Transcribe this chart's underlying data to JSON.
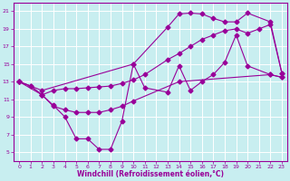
{
  "xlabel": "Windchill (Refroidissement éolien,°C)",
  "bg_color": "#c8eef0",
  "line_color": "#990099",
  "grid_color": "#ffffff",
  "xlim": [
    -0.5,
    23.5
  ],
  "ylim": [
    4,
    22
  ],
  "xticks": [
    0,
    1,
    2,
    3,
    4,
    5,
    6,
    7,
    8,
    9,
    10,
    11,
    12,
    13,
    14,
    15,
    16,
    17,
    18,
    19,
    20,
    21,
    22,
    23
  ],
  "yticks": [
    5,
    7,
    9,
    11,
    13,
    15,
    17,
    19,
    21
  ],
  "line1_x": [
    0,
    1,
    2,
    3,
    4,
    5,
    6,
    7,
    8,
    9,
    10,
    14,
    22,
    23
  ],
  "line1_y": [
    13,
    12.5,
    11.5,
    10.2,
    9.8,
    9.5,
    9.5,
    9.5,
    9.8,
    10.2,
    10.8,
    13.0,
    13.8,
    13.5
  ],
  "line2_x": [
    0,
    2,
    3,
    4,
    5,
    6,
    7,
    8,
    9,
    10,
    11,
    13,
    14,
    15,
    16,
    17,
    18,
    19,
    20,
    21,
    22,
    23
  ],
  "line2_y": [
    13,
    11.5,
    12.0,
    12.2,
    12.2,
    12.3,
    12.4,
    12.5,
    12.8,
    13.2,
    13.8,
    15.5,
    16.2,
    17.0,
    17.8,
    18.3,
    18.8,
    19.0,
    18.5,
    19.0,
    19.5,
    14.0
  ],
  "line3_x": [
    0,
    1,
    2,
    3,
    4,
    5,
    6,
    7,
    8,
    9,
    10,
    11,
    13,
    14,
    15,
    16,
    17,
    18,
    19,
    20,
    22,
    23
  ],
  "line3_y": [
    13,
    12.5,
    11.5,
    10.3,
    9.0,
    6.5,
    6.5,
    5.3,
    5.3,
    8.5,
    15.0,
    12.3,
    11.8,
    14.8,
    12.0,
    13.0,
    13.8,
    15.2,
    18.3,
    14.8,
    13.8,
    13.5
  ],
  "line4_x": [
    0,
    2,
    10,
    13,
    14,
    15,
    16,
    17,
    18,
    19,
    20,
    22,
    23
  ],
  "line4_y": [
    13,
    12.0,
    15.0,
    19.2,
    20.7,
    20.8,
    20.7,
    20.2,
    19.8,
    19.8,
    20.8,
    19.8,
    14.0
  ]
}
